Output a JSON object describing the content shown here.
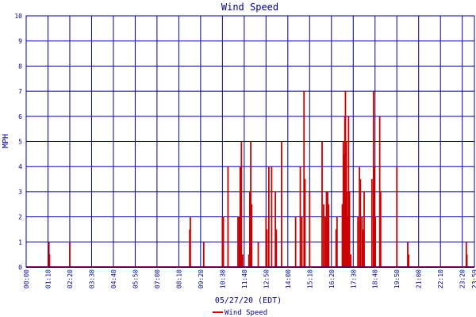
{
  "chart_data": {
    "type": "area",
    "title": "Wind Speed",
    "xlabel": "05/27/20 (EDT)",
    "ylabel": "MPH",
    "ylim": [
      0,
      10
    ],
    "y_ticks": [
      "0",
      "1",
      "2",
      "3",
      "4",
      "5",
      "6",
      "7",
      "8",
      "9",
      "10"
    ],
    "x_ticks": [
      "00:00",
      "01:10",
      "02:20",
      "03:30",
      "04:40",
      "05:50",
      "07:00",
      "08:10",
      "09:20",
      "10:30",
      "11:40",
      "12:50",
      "14:00",
      "15:10",
      "16:20",
      "17:30",
      "18:40",
      "19:50",
      "21:00",
      "22:10",
      "23:20",
      "23:59"
    ],
    "grid": true,
    "legend_position": "bottom-center",
    "colors": {
      "series": "#cc0000",
      "grid": "#00008b",
      "text": "#00008b",
      "background": "#ffffff"
    },
    "series": [
      {
        "name": "Wind Speed",
        "points": [
          [
            "01:13",
            1
          ],
          [
            "01:15",
            0.5
          ],
          [
            "02:20",
            1
          ],
          [
            "08:45",
            1.5
          ],
          [
            "08:47",
            2
          ],
          [
            "09:30",
            1
          ],
          [
            "10:30",
            2
          ],
          [
            "10:33",
            2
          ],
          [
            "10:48",
            4
          ],
          [
            "11:20",
            2
          ],
          [
            "11:24",
            2
          ],
          [
            "11:27",
            4
          ],
          [
            "11:31",
            5
          ],
          [
            "11:35",
            0.5
          ],
          [
            "11:55",
            0.5
          ],
          [
            "11:58",
            3
          ],
          [
            "12:01",
            5
          ],
          [
            "12:04",
            2.5
          ],
          [
            "12:25",
            1
          ],
          [
            "12:50",
            2
          ],
          [
            "12:53",
            1.5
          ],
          [
            "12:59",
            4
          ],
          [
            "13:08",
            4
          ],
          [
            "13:20",
            3
          ],
          [
            "13:23",
            1.5
          ],
          [
            "13:40",
            5
          ],
          [
            "14:25",
            2
          ],
          [
            "14:40",
            4
          ],
          [
            "14:45",
            2
          ],
          [
            "14:52",
            7
          ],
          [
            "14:55",
            3.5
          ],
          [
            "15:10",
            3
          ],
          [
            "15:50",
            5
          ],
          [
            "15:55",
            2.5
          ],
          [
            "16:00",
            2
          ],
          [
            "16:04",
            3
          ],
          [
            "16:08",
            3
          ],
          [
            "16:11",
            2.5
          ],
          [
            "16:35",
            1.5
          ],
          [
            "16:38",
            2
          ],
          [
            "16:55",
            2.5
          ],
          [
            "16:58",
            5
          ],
          [
            "17:00",
            4.5
          ],
          [
            "17:03",
            6
          ],
          [
            "17:05",
            7
          ],
          [
            "17:08",
            5
          ],
          [
            "17:10",
            3
          ],
          [
            "17:13",
            2
          ],
          [
            "17:15",
            6
          ],
          [
            "17:18",
            3
          ],
          [
            "17:22",
            0.5
          ],
          [
            "17:45",
            2
          ],
          [
            "17:50",
            4
          ],
          [
            "17:53",
            3.5
          ],
          [
            "17:58",
            2
          ],
          [
            "18:02",
            1.5
          ],
          [
            "18:05",
            3
          ],
          [
            "18:30",
            3.5
          ],
          [
            "18:35",
            7
          ],
          [
            "18:38",
            4
          ],
          [
            "18:41",
            2
          ],
          [
            "18:55",
            6
          ],
          [
            "18:58",
            3
          ],
          [
            "19:50",
            4
          ],
          [
            "20:25",
            1
          ],
          [
            "20:28",
            0.5
          ],
          [
            "23:33",
            1
          ],
          [
            "23:35",
            0.5
          ]
        ]
      }
    ]
  }
}
